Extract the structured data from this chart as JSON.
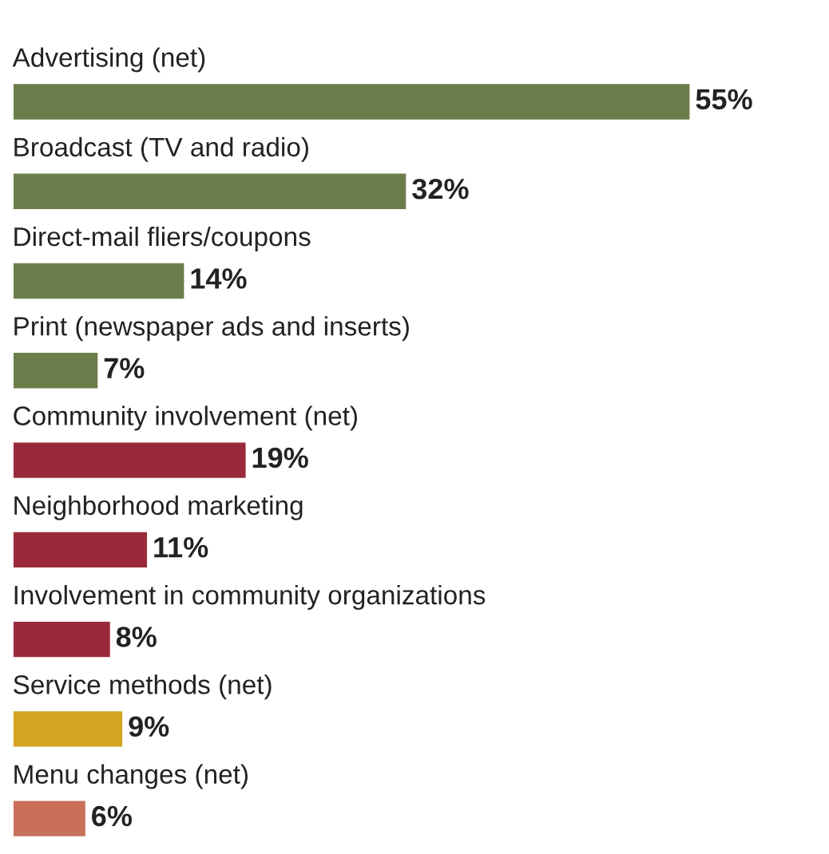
{
  "chart_data": {
    "type": "bar",
    "orientation": "horizontal",
    "categories": [
      "Advertising (net)",
      "Broadcast (TV and radio)",
      "Direct-mail fliers/coupons",
      "Print (newspaper ads and inserts)",
      "Community involvement (net)",
      "Neighborhood marketing",
      "Involvement in community organizations",
      "Service methods (net)",
      "Menu changes (net)"
    ],
    "values": [
      55,
      32,
      14,
      7,
      19,
      11,
      8,
      9,
      6
    ],
    "colors": [
      "#6b7d4a",
      "#6b7d4a",
      "#6b7d4a",
      "#6b7d4a",
      "#9a2a3a",
      "#9a2a3a",
      "#9a2a3a",
      "#d4a520",
      "#c8705a"
    ],
    "value_labels": [
      "55%",
      "32%",
      "14%",
      "7%",
      "19%",
      "11%",
      "8%",
      "9%",
      "6%"
    ]
  }
}
